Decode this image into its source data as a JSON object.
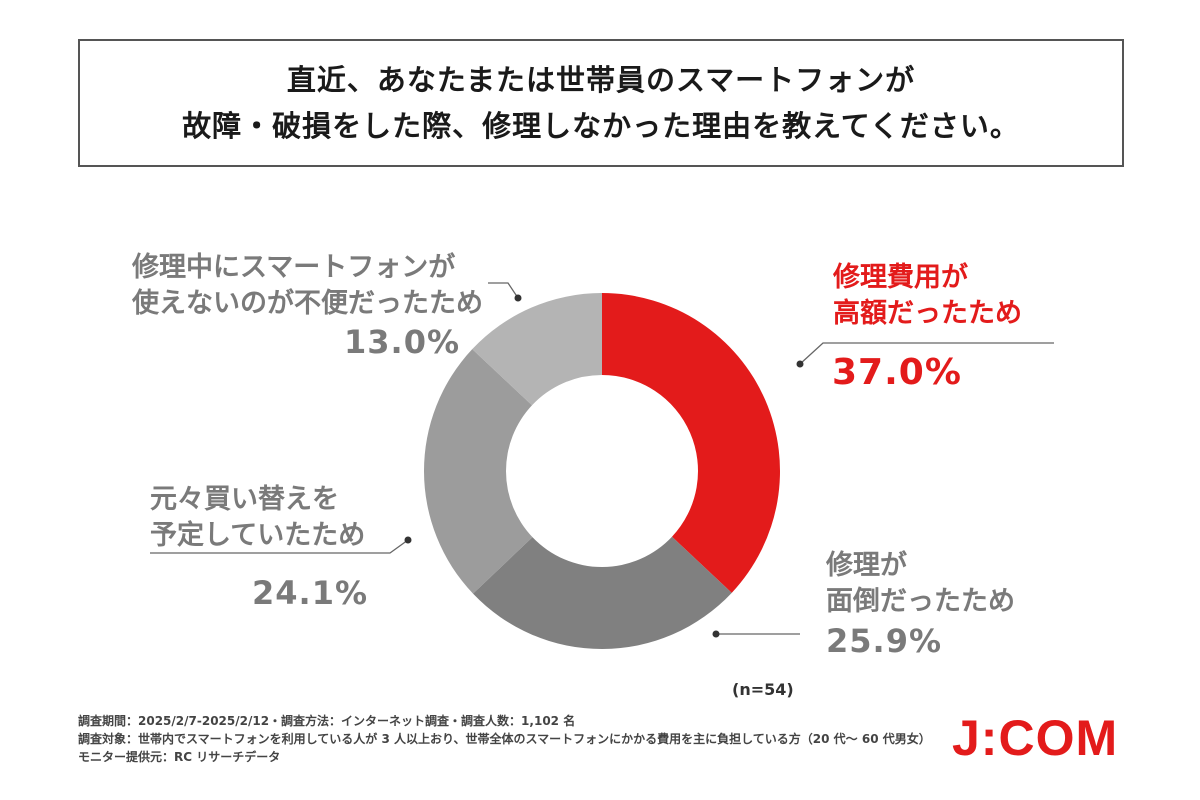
{
  "title": {
    "line1": "直近、あなたまたは世帯員のスマートフォンが",
    "line2": "故障・破損をした際、修理しなかった理由を教えてください。"
  },
  "chart_data": {
    "type": "pie",
    "title": "直近、あなたまたは世帯員のスマートフォンが故障・破損をした際、修理しなかった理由を教えてください。",
    "slices": [
      {
        "line1": "修理費用が",
        "line2": "高額だったため",
        "value": 37.0,
        "label": "37.0%",
        "color": "#e31b1b"
      },
      {
        "line1": "修理が",
        "line2": "面倒だったため",
        "value": 25.9,
        "label": "25.9%",
        "color": "#808080"
      },
      {
        "line1": "元々買い替えを",
        "line2": "予定していたため",
        "value": 24.1,
        "label": "24.1%",
        "color": "#9c9c9c"
      },
      {
        "line1": "修理中にスマートフォンが",
        "line2": "使えないのが不便だったため",
        "value": 13.0,
        "label": "13.0%",
        "color": "#b4b4b4"
      }
    ],
    "sample_size": "(n=54)"
  },
  "footer": {
    "line1": "調査期間：2025/2/7-2025/2/12・調査方法：インターネット調査・調査人数：1,102 名",
    "line2": "調査対象：世帯内でスマートフォンを利用している人が 3 人以上おり、世帯全体のスマートフォンにかかる費用を主に負担している方（20 代～ 60 代男女）",
    "line3": "モニター提供元：RC リサーチデータ"
  },
  "logo": "J:COM"
}
